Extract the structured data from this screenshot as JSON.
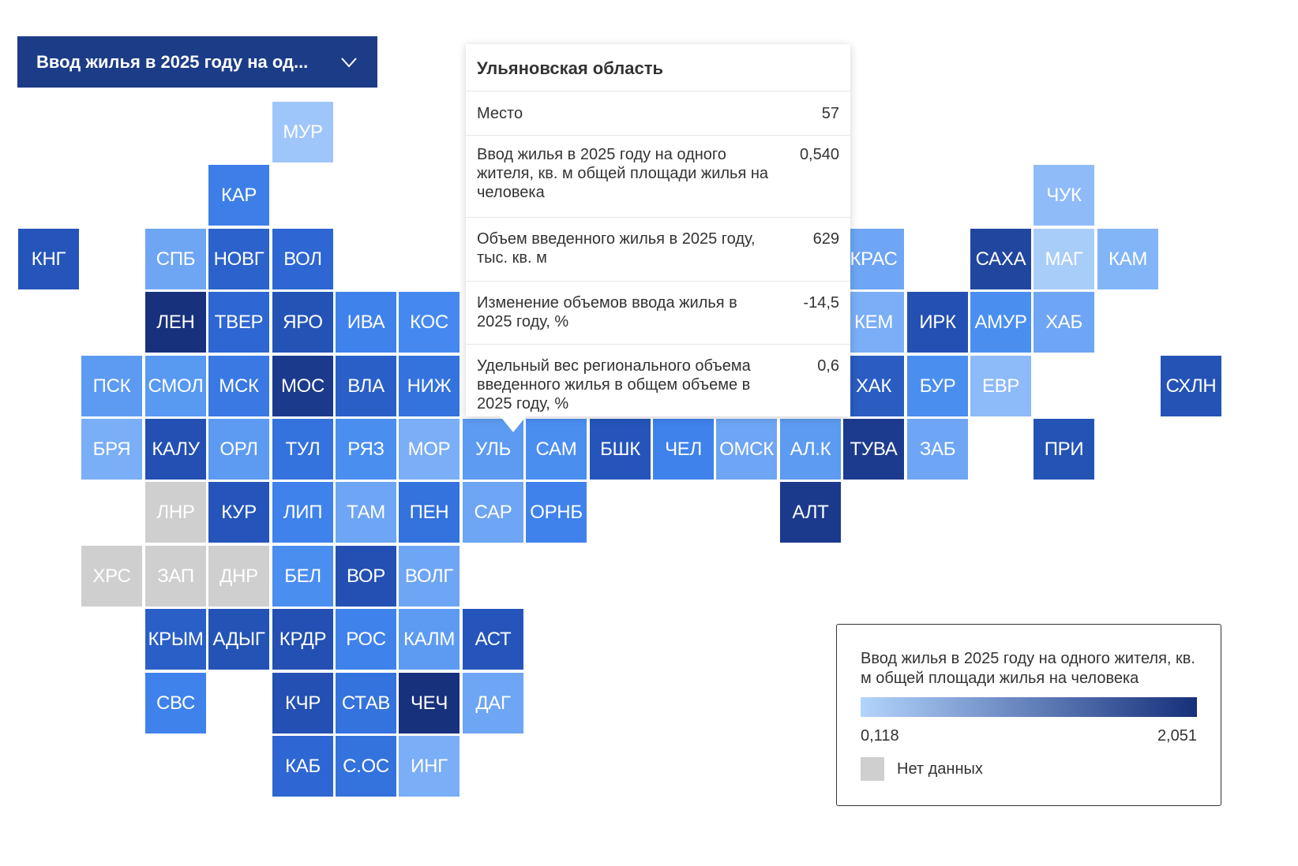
{
  "dropdown": {
    "label": "Ввод жилья в 2025 году на од...",
    "icon": "chevron-down-icon"
  },
  "tooltip": {
    "title": "Ульяновская область",
    "rows": [
      {
        "label": "Место",
        "value": "57"
      },
      {
        "label": "Ввод жилья в 2025 году на одного жителя, кв. м общей площади жилья на человека",
        "value": "0,540"
      },
      {
        "label": "Объем введенного жилья в 2025 году, тыс. кв. м",
        "value": "629"
      },
      {
        "label": "Изменение объемов ввода жилья в 2025 году, %",
        "value": "-14,5"
      },
      {
        "label": "Удельный вес регионального объема введенного жилья в общем объеме в 2025 году, %",
        "value": "0,6"
      }
    ]
  },
  "legend": {
    "title": "Ввод жилья в 2025 году на одного жителя, кв. м общей площади жилья на человека",
    "min": "0,118",
    "max": "2,051",
    "nodata_label": "Нет данных",
    "color_low": "#b3d4fc",
    "color_high": "#16307a",
    "nodata_color": "#cfcfcf"
  },
  "regions": [
    {
      "code": "МУР",
      "col": 4,
      "row": 0,
      "color": "#9fc6fa"
    },
    {
      "code": "КАР",
      "col": 3,
      "row": 1,
      "color": "#3d7ee8"
    },
    {
      "code": "ЧУК",
      "col": 16,
      "row": 1,
      "color": "#8fbcf9"
    },
    {
      "code": "КНГ",
      "col": 0,
      "row": 2,
      "color": "#2555ba"
    },
    {
      "code": "СПБ",
      "col": 2,
      "row": 2,
      "color": "#6fa6f4"
    },
    {
      "code": "НОВГ",
      "col": 3,
      "row": 2,
      "color": "#2c62cc"
    },
    {
      "code": "ВОЛ",
      "col": 4,
      "row": 2,
      "color": "#2e66d3"
    },
    {
      "code": "КРАС",
      "col": 13,
      "row": 2,
      "color": "#6ea5f4"
    },
    {
      "code": "САХА",
      "col": 15,
      "row": 2,
      "color": "#20469f"
    },
    {
      "code": "МАГ",
      "col": 16,
      "row": 2,
      "color": "#a9cdf9"
    },
    {
      "code": "КАМ",
      "col": 17,
      "row": 2,
      "color": "#82b5f8"
    },
    {
      "code": "ЛЕН",
      "col": 2,
      "row": 3,
      "color": "#17317c"
    },
    {
      "code": "ТВЕР",
      "col": 3,
      "row": 3,
      "color": "#2e66d3"
    },
    {
      "code": "ЯРО",
      "col": 4,
      "row": 3,
      "color": "#2453b6"
    },
    {
      "code": "ИВА",
      "col": 5,
      "row": 3,
      "color": "#3f82ec"
    },
    {
      "code": "КОС",
      "col": 6,
      "row": 3,
      "color": "#4589f0"
    },
    {
      "code": "КЕМ",
      "col": 13,
      "row": 3,
      "color": "#7aaef6"
    },
    {
      "code": "ИРК",
      "col": 14,
      "row": 3,
      "color": "#2350b2"
    },
    {
      "code": "АМУР",
      "col": 15,
      "row": 3,
      "color": "#4a8ff0"
    },
    {
      "code": "ХАБ",
      "col": 16,
      "row": 3,
      "color": "#6ea5f4"
    },
    {
      "code": "ПСК",
      "col": 1,
      "row": 4,
      "color": "#5c9bf1"
    },
    {
      "code": "СМОЛ",
      "col": 2,
      "row": 4,
      "color": "#5899f2"
    },
    {
      "code": "МСК",
      "col": 3,
      "row": 4,
      "color": "#3a79e4"
    },
    {
      "code": "МОС",
      "col": 4,
      "row": 4,
      "color": "#1b3a8c"
    },
    {
      "code": "ВЛА",
      "col": 5,
      "row": 4,
      "color": "#2a5fc7"
    },
    {
      "code": "НИЖ",
      "col": 6,
      "row": 4,
      "color": "#3472dd"
    },
    {
      "code": "ХАК",
      "col": 13,
      "row": 4,
      "color": "#2a5cc2"
    },
    {
      "code": "БУР",
      "col": 14,
      "row": 4,
      "color": "#4a8ef0"
    },
    {
      "code": "ЕВР",
      "col": 15,
      "row": 4,
      "color": "#8dbaf8"
    },
    {
      "code": "СХЛН",
      "col": 18,
      "row": 4,
      "color": "#2453b6"
    },
    {
      "code": "БРЯ",
      "col": 1,
      "row": 5,
      "color": "#7aaef6"
    },
    {
      "code": "КАЛУ",
      "col": 2,
      "row": 5,
      "color": "#2350b2"
    },
    {
      "code": "ОРЛ",
      "col": 3,
      "row": 5,
      "color": "#5c9bf1"
    },
    {
      "code": "ТУЛ",
      "col": 4,
      "row": 5,
      "color": "#3472dd"
    },
    {
      "code": "РЯЗ",
      "col": 5,
      "row": 5,
      "color": "#4a8ef0"
    },
    {
      "code": "МОР",
      "col": 6,
      "row": 5,
      "color": "#7aaef6"
    },
    {
      "code": "УЛЬ",
      "col": 7,
      "row": 5,
      "color": "#5c9bf1"
    },
    {
      "code": "САМ",
      "col": 8,
      "row": 5,
      "color": "#4a8ef0"
    },
    {
      "code": "БШК",
      "col": 9,
      "row": 5,
      "color": "#2555ba"
    },
    {
      "code": "ЧЕЛ",
      "col": 10,
      "row": 5,
      "color": "#3f82ec"
    },
    {
      "code": "ОМСК",
      "col": 11,
      "row": 5,
      "color": "#6ea5f4"
    },
    {
      "code": "АЛ.К",
      "col": 12,
      "row": 5,
      "color": "#5c9bf1"
    },
    {
      "code": "ТУВА",
      "col": 13,
      "row": 5,
      "color": "#1d3b8e"
    },
    {
      "code": "ЗАБ",
      "col": 14,
      "row": 5,
      "color": "#6ea5f4"
    },
    {
      "code": "ПРИ",
      "col": 16,
      "row": 5,
      "color": "#2453b6"
    },
    {
      "code": "ЛНР",
      "col": 2,
      "row": 6,
      "color": "#cfcfcf"
    },
    {
      "code": "КУР",
      "col": 3,
      "row": 6,
      "color": "#2555ba"
    },
    {
      "code": "ЛИП",
      "col": 4,
      "row": 6,
      "color": "#3f82ec"
    },
    {
      "code": "ТАМ",
      "col": 5,
      "row": 6,
      "color": "#6ea5f4"
    },
    {
      "code": "ПЕН",
      "col": 6,
      "row": 6,
      "color": "#3472dd"
    },
    {
      "code": "САР",
      "col": 7,
      "row": 6,
      "color": "#6ea5f4"
    },
    {
      "code": "ОРНБ",
      "col": 8,
      "row": 6,
      "color": "#3f82ec"
    },
    {
      "code": "АЛТ",
      "col": 12,
      "row": 6,
      "color": "#1b3a8c"
    },
    {
      "code": "ХРС",
      "col": 1,
      "row": 7,
      "color": "#cfcfcf"
    },
    {
      "code": "ЗАП",
      "col": 2,
      "row": 7,
      "color": "#cfcfcf"
    },
    {
      "code": "ДНР",
      "col": 3,
      "row": 7,
      "color": "#cfcfcf"
    },
    {
      "code": "БЕЛ",
      "col": 4,
      "row": 7,
      "color": "#4a8ef0"
    },
    {
      "code": "ВОР",
      "col": 5,
      "row": 7,
      "color": "#2350b2"
    },
    {
      "code": "ВОЛГ",
      "col": 6,
      "row": 7,
      "color": "#6ea5f4"
    },
    {
      "code": "КРЫМ",
      "col": 2,
      "row": 8,
      "color": "#2a5fc7"
    },
    {
      "code": "АДЫГ",
      "col": 3,
      "row": 8,
      "color": "#2453b6"
    },
    {
      "code": "КРДР",
      "col": 4,
      "row": 8,
      "color": "#2350b2"
    },
    {
      "code": "РОС",
      "col": 5,
      "row": 8,
      "color": "#3f82ec"
    },
    {
      "code": "КАЛМ",
      "col": 6,
      "row": 8,
      "color": "#5c9bf1"
    },
    {
      "code": "АСТ",
      "col": 7,
      "row": 8,
      "color": "#2555ba"
    },
    {
      "code": "СВС",
      "col": 2,
      "row": 9,
      "color": "#3f82ec"
    },
    {
      "code": "КЧР",
      "col": 4,
      "row": 9,
      "color": "#2350b2"
    },
    {
      "code": "СТАВ",
      "col": 5,
      "row": 9,
      "color": "#3472dd"
    },
    {
      "code": "ЧЕЧ",
      "col": 6,
      "row": 9,
      "color": "#17317c"
    },
    {
      "code": "ДАГ",
      "col": 7,
      "row": 9,
      "color": "#6ea5f4"
    },
    {
      "code": "КАБ",
      "col": 4,
      "row": 10,
      "color": "#2e66d3"
    },
    {
      "code": "С.ОС",
      "col": 5,
      "row": 10,
      "color": "#3472dd"
    },
    {
      "code": "ИНГ",
      "col": 6,
      "row": 10,
      "color": "#7aaef6"
    }
  ]
}
